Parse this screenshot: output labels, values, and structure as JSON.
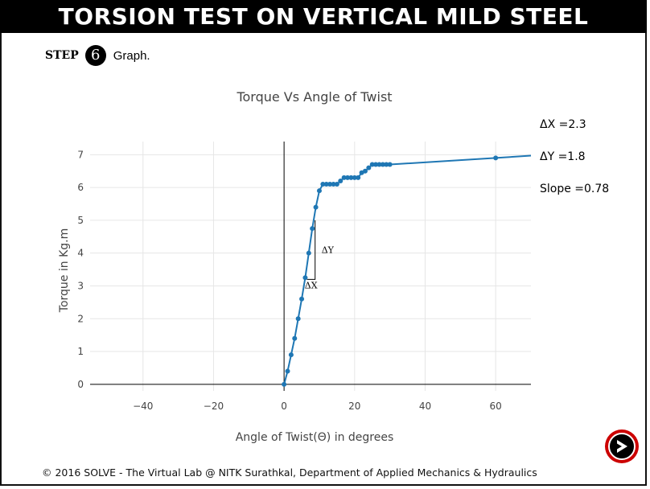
{
  "header": {
    "title": "TORSION TEST ON VERTICAL MILD STEEL"
  },
  "step": {
    "word": "STEP",
    "number": "6",
    "text": "Graph."
  },
  "readouts": {
    "dx": "ΔX =2.3",
    "dy": "ΔY =1.8",
    "slope": "Slope =0.78"
  },
  "footer": {
    "text": "© 2016 SOLVE - The Virtual Lab @ NITK Surathkal, Department of Applied Mechanics & Hydraulics"
  },
  "colors": {
    "series": "#1f77b4",
    "grid": "#e6e6e6",
    "axis": "#444444"
  },
  "icons": {
    "next": "next-arrow-icon"
  },
  "chart_data": {
    "type": "line",
    "title": "Torque Vs Angle of Twist",
    "xlabel": "Angle of Twist(Θ) in degrees",
    "ylabel": "Torque in Kg.m",
    "xlim": [
      -55,
      70
    ],
    "ylim": [
      -0.2,
      7.4
    ],
    "xticks": [
      -40,
      -20,
      0,
      20,
      40,
      60
    ],
    "yticks": [
      0,
      1,
      2,
      3,
      4,
      5,
      6,
      7
    ],
    "grid": true,
    "series": [
      {
        "x": [
          0,
          1,
          2,
          3,
          4,
          5,
          6,
          7,
          8,
          9,
          10,
          11,
          12,
          13,
          14,
          15,
          16,
          17,
          18,
          19,
          20,
          21,
          22,
          23,
          24,
          25,
          26,
          27,
          28,
          29,
          30,
          60,
          70
        ],
        "y": [
          0,
          0.4,
          0.9,
          1.4,
          2.0,
          2.6,
          3.25,
          4.0,
          4.75,
          5.4,
          5.9,
          6.1,
          6.1,
          6.1,
          6.1,
          6.1,
          6.2,
          6.3,
          6.3,
          6.3,
          6.3,
          6.3,
          6.45,
          6.5,
          6.6,
          6.7,
          6.7,
          6.7,
          6.7,
          6.7,
          6.7,
          6.9,
          6.97
        ]
      }
    ],
    "slope_triangle": {
      "x": [
        6.5,
        8.8
      ],
      "y": [
        3.2,
        5.0
      ],
      "dx_label": "ΔX",
      "dy_label": "ΔY"
    }
  }
}
